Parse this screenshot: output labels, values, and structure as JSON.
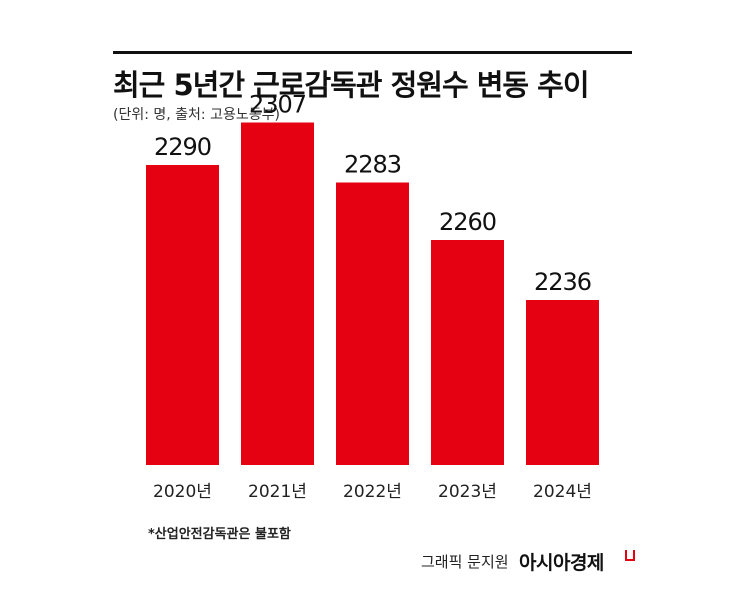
{
  "header": {
    "title": "최근 5년간 근로감독관 정원수 변동 추이",
    "subtitle": "(단위: 명, 출처: 고용노동부)"
  },
  "chart_data": {
    "type": "bar",
    "categories": [
      "2020년",
      "2021년",
      "2022년",
      "2023년",
      "2024년"
    ],
    "values": [
      2290,
      2307,
      2283,
      2260,
      2236
    ],
    "data_labels": [
      "2290",
      "2307",
      "2283",
      "2260",
      "2236"
    ],
    "title": "최근 5년간 근로감독관 정원수 변동 추이",
    "xlabel": "",
    "ylabel": "",
    "unit": "명",
    "grid": false,
    "legend": "none",
    "bar_color": "#e50012"
  },
  "footer": {
    "footnote": "*산업안전감독관은 불포함",
    "credit": "그래픽 문지원",
    "brand": "아시아경제"
  },
  "colors": {
    "accent": "#e50012",
    "text": "#111111"
  }
}
